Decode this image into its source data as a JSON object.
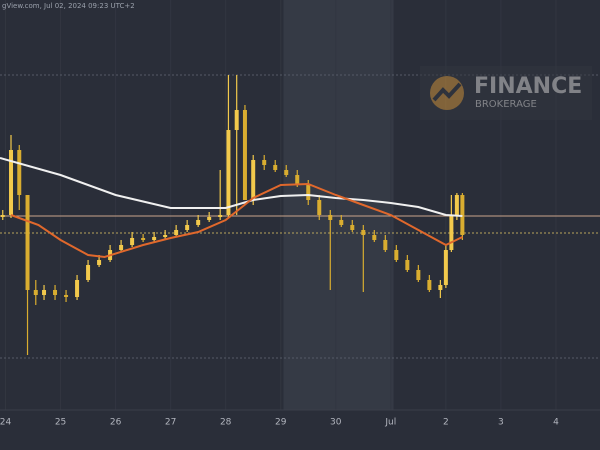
{
  "header": "gView.com, Jul 02, 2024 09:23 UTC+2",
  "watermark": {
    "title": "FINANCE",
    "subtitle": "BROKERAGE"
  },
  "chart_data": {
    "type": "candlestick",
    "xlim": [
      -0.1,
      10.8
    ],
    "ylim": [
      0,
      41
    ],
    "xticks": [
      {
        "value": 0,
        "label": "24"
      },
      {
        "value": 1,
        "label": "25"
      },
      {
        "value": 2,
        "label": "26"
      },
      {
        "value": 3,
        "label": "27"
      },
      {
        "value": 4,
        "label": "28"
      },
      {
        "value": 5,
        "label": "29"
      },
      {
        "value": 6,
        "label": "30"
      },
      {
        "value": 7,
        "label": "Jul"
      },
      {
        "value": 8,
        "label": "2"
      },
      {
        "value": 9,
        "label": "3"
      },
      {
        "value": 10,
        "label": "4"
      }
    ],
    "shaded_range": [
      5.05,
      7.05
    ],
    "levels": [
      {
        "value": 19.4,
        "color": "#c9a48a",
        "dashed": false
      },
      {
        "value": 17.7,
        "color": "#b8a45a",
        "dashed": true
      },
      {
        "value": 33.5,
        "color": "#555a66",
        "dashed": true
      },
      {
        "value": 5.2,
        "color": "#555a66",
        "dashed": true
      }
    ],
    "up_color": "#f2c94c",
    "down_color": "#d9ad30",
    "x": [
      -0.05,
      0.1,
      0.25,
      0.4,
      0.55,
      0.7,
      0.9,
      1.1,
      1.3,
      1.5,
      1.7,
      1.9,
      2.1,
      2.3,
      2.5,
      2.7,
      2.9,
      3.1,
      3.3,
      3.5,
      3.7,
      3.9,
      4.05,
      4.2,
      4.35,
      4.5,
      4.7,
      4.9,
      5.1,
      5.3,
      5.5,
      5.7,
      5.9,
      6.1,
      6.3,
      6.5,
      6.7,
      6.9,
      7.1,
      7.3,
      7.5,
      7.7,
      7.9,
      8.0,
      8.1,
      8.2,
      8.3
    ],
    "open": [
      19.3,
      19.5,
      26,
      21.5,
      12,
      11.5,
      12,
      11.5,
      11.3,
      13,
      14.5,
      15,
      16,
      16.5,
      17.2,
      17,
      17.3,
      17.5,
      18,
      18.5,
      19,
      19.3,
      19.5,
      28,
      30,
      21,
      25,
      24.5,
      24,
      23.5,
      22.5,
      21,
      19.5,
      19,
      18.5,
      18,
      17.5,
      17,
      16,
      15,
      14,
      13,
      12,
      12.5,
      16,
      19.5,
      21.5
    ],
    "high": [
      20,
      27.5,
      26.5,
      21.5,
      13,
      12.5,
      12.5,
      12,
      13.5,
      15,
      15.5,
      16.5,
      17,
      17.8,
      17.6,
      17.8,
      18,
      18.5,
      19,
      19.5,
      19.8,
      24,
      33.5,
      33.5,
      30.5,
      25.5,
      25.5,
      25,
      24.5,
      24,
      23,
      21.5,
      20,
      19.5,
      19,
      18.5,
      18,
      17.5,
      16.5,
      15.5,
      14.5,
      13.5,
      13,
      16.5,
      21.5,
      21.7,
      21.7
    ],
    "low": [
      19,
      19.2,
      20,
      5.5,
      10.5,
      11,
      11,
      10.8,
      11,
      12.8,
      14.3,
      14.8,
      15.8,
      16.3,
      16.8,
      16.7,
      17,
      17.3,
      17.8,
      18.3,
      18.8,
      19,
      19.2,
      19.5,
      21,
      20.5,
      24,
      23.8,
      23.3,
      22.3,
      20.5,
      19,
      12,
      18.3,
      17.8,
      11.8,
      16.8,
      15.8,
      14.8,
      13.8,
      12.8,
      11.8,
      11.2,
      12.2,
      15.8,
      19,
      17
    ],
    "close": [
      19.5,
      26,
      21.5,
      12,
      11.5,
      12,
      11.5,
      11.3,
      13,
      14.5,
      15,
      16,
      16.5,
      17.2,
      17,
      17.3,
      17.5,
      18,
      18.5,
      19,
      19.3,
      19.5,
      28,
      30,
      21,
      25,
      24.5,
      24,
      23.5,
      22.5,
      21,
      19.5,
      19,
      18.5,
      18,
      17.5,
      17,
      16,
      15,
      14,
      13,
      12,
      12.5,
      16,
      19.5,
      21.5,
      17.5
    ],
    "overlays": [
      {
        "color": "#f0f0f0",
        "x": [
          -0.1,
          1,
          2,
          3,
          4,
          4.5,
          5,
          5.5,
          6,
          6.5,
          7,
          7.5,
          8,
          8.3
        ],
        "values": [
          25.2,
          23.5,
          21.5,
          20.2,
          20.2,
          21,
          21.4,
          21.5,
          21.2,
          21,
          20.7,
          20.3,
          19.5,
          19.4
        ]
      },
      {
        "color": "#e0682c",
        "x": [
          0.1,
          0.6,
          1,
          1.5,
          1.8,
          2.5,
          3,
          3.5,
          4,
          4.5,
          5,
          5.5,
          6,
          6.5,
          7,
          7.5,
          8,
          8.3
        ],
        "values": [
          19.5,
          18.5,
          17,
          15.5,
          15.3,
          16.5,
          17.2,
          17.8,
          19,
          21.2,
          22.5,
          22.6,
          21.5,
          20.5,
          19.5,
          18,
          16.5,
          17.3
        ]
      }
    ]
  }
}
